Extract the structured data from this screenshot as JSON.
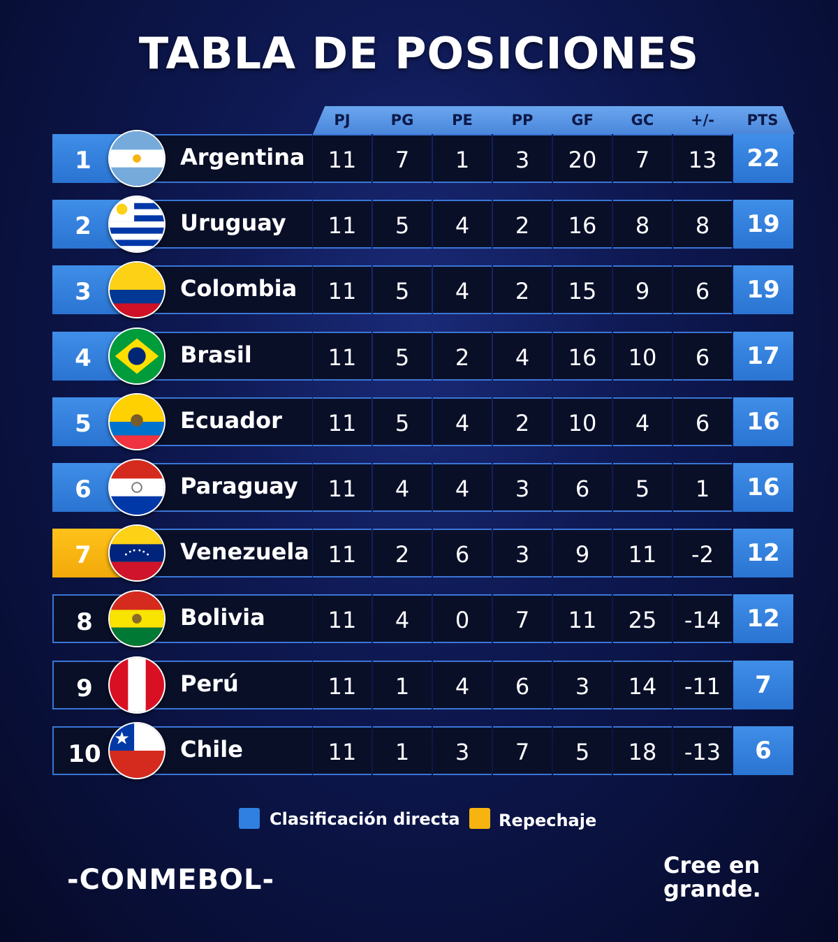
{
  "title": "TABLA DE POSICIONES",
  "columns": [
    "PJ",
    "PG",
    "PE",
    "PP",
    "GF",
    "GC",
    "+/-",
    "PTS"
  ],
  "colors": {
    "clasificacion_directa": "#2f80e0",
    "repechaje": "#f7b410",
    "background": "#0c1648"
  },
  "rows": [
    {
      "pos": "1",
      "team": "Argentina",
      "flag": "argentina-flag",
      "status": "direct",
      "stats": [
        "11",
        "7",
        "1",
        "3",
        "20",
        "7",
        "13"
      ],
      "pts": "22"
    },
    {
      "pos": "2",
      "team": "Uruguay",
      "flag": "uruguay-flag",
      "status": "direct",
      "stats": [
        "11",
        "5",
        "4",
        "2",
        "16",
        "8",
        "8"
      ],
      "pts": "19"
    },
    {
      "pos": "3",
      "team": "Colombia",
      "flag": "colombia-flag",
      "status": "direct",
      "stats": [
        "11",
        "5",
        "4",
        "2",
        "15",
        "9",
        "6"
      ],
      "pts": "19"
    },
    {
      "pos": "4",
      "team": "Brasil",
      "flag": "brasil-flag",
      "status": "direct",
      "stats": [
        "11",
        "5",
        "2",
        "4",
        "16",
        "10",
        "6"
      ],
      "pts": "17"
    },
    {
      "pos": "5",
      "team": "Ecuador",
      "flag": "ecuador-flag",
      "status": "direct",
      "stats": [
        "11",
        "5",
        "4",
        "2",
        "10",
        "4",
        "6"
      ],
      "pts": "16"
    },
    {
      "pos": "6",
      "team": "Paraguay",
      "flag": "paraguay-flag",
      "status": "direct",
      "stats": [
        "11",
        "4",
        "4",
        "3",
        "6",
        "5",
        "1"
      ],
      "pts": "16"
    },
    {
      "pos": "7",
      "team": "Venezuela",
      "flag": "venezuela-flag",
      "status": "playoff",
      "stats": [
        "11",
        "2",
        "6",
        "3",
        "9",
        "11",
        "-2"
      ],
      "pts": "12"
    },
    {
      "pos": "8",
      "team": "Bolivia",
      "flag": "bolivia-flag",
      "status": "none",
      "stats": [
        "11",
        "4",
        "0",
        "7",
        "11",
        "25",
        "-14"
      ],
      "pts": "12"
    },
    {
      "pos": "9",
      "team": "Perú",
      "flag": "peru-flag",
      "status": "none",
      "stats": [
        "11",
        "1",
        "4",
        "6",
        "3",
        "14",
        "-11"
      ],
      "pts": "7"
    },
    {
      "pos": "10",
      "team": "Chile",
      "flag": "chile-flag",
      "status": "none",
      "stats": [
        "11",
        "1",
        "3",
        "7",
        "5",
        "18",
        "-13"
      ],
      "pts": "6"
    }
  ],
  "legend": {
    "direct": "Clasificación directa",
    "playoff": "Repechaje"
  },
  "footer": {
    "brand": "-CONMEBOL-",
    "slogan_line1": "Cree en",
    "slogan_line2": "grande."
  }
}
